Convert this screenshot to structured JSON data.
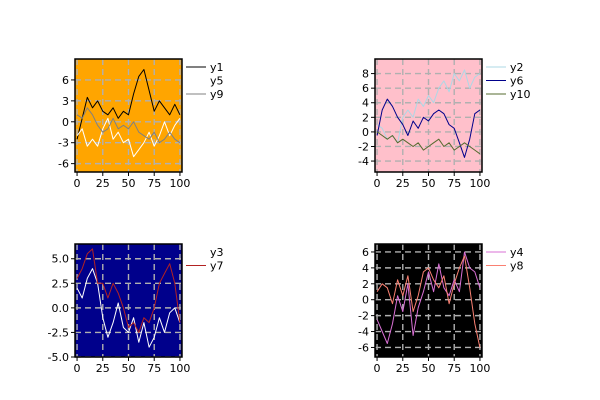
{
  "chart_data": [
    {
      "type": "line",
      "x": [
        0,
        5,
        10,
        15,
        20,
        25,
        30,
        35,
        40,
        45,
        50,
        55,
        60,
        65,
        70,
        75,
        80,
        85,
        90,
        95,
        100
      ],
      "xticks": [
        0,
        25,
        50,
        75,
        100
      ],
      "xtick_labels": [
        "0",
        "25",
        "50",
        "75",
        "100"
      ],
      "xlim": [
        -2,
        102
      ],
      "yticks": [
        -6,
        -3,
        0,
        3,
        6
      ],
      "ytick_labels": [
        "-6",
        "-3",
        "0",
        "3",
        "6"
      ],
      "ylim": [
        -7.2,
        9.0
      ],
      "background": "#ffa500",
      "grid": true,
      "legend_position": "right",
      "series": [
        {
          "name": "y1",
          "color": "#000000",
          "values": [
            -2.5,
            0.5,
            3.5,
            2.0,
            3.0,
            1.5,
            1.0,
            2.0,
            0.5,
            1.5,
            1.0,
            4.0,
            6.5,
            7.5,
            4.5,
            1.5,
            3.0,
            2.0,
            1.0,
            2.5,
            1.0
          ]
        },
        {
          "name": "y5",
          "color": "#ffffff",
          "values": [
            -2.0,
            -1.0,
            -3.5,
            -2.5,
            -3.5,
            -1.0,
            0.5,
            -2.5,
            -1.5,
            -3.0,
            -2.5,
            -5.0,
            -4.0,
            -3.0,
            -1.5,
            -3.5,
            -2.0,
            0.0,
            -2.0,
            -0.5,
            0.5
          ]
        },
        {
          "name": "y9",
          "color": "#808080",
          "values": [
            1.0,
            0.5,
            2.0,
            1.0,
            -0.5,
            -1.5,
            -1.0,
            0.5,
            -1.0,
            -0.5,
            -1.0,
            0.0,
            -1.5,
            -2.0,
            -2.5,
            -1.5,
            -3.0,
            -2.5,
            -1.5,
            -2.5,
            -3.0
          ]
        }
      ]
    },
    {
      "type": "line",
      "x": [
        0,
        5,
        10,
        15,
        20,
        25,
        30,
        35,
        40,
        45,
        50,
        55,
        60,
        65,
        70,
        75,
        80,
        85,
        90,
        95,
        100
      ],
      "xticks": [
        0,
        25,
        50,
        75,
        100
      ],
      "xtick_labels": [
        "0",
        "25",
        "50",
        "75",
        "100"
      ],
      "xlim": [
        -2,
        102
      ],
      "yticks": [
        -4,
        -2,
        0,
        2,
        4,
        6,
        8
      ],
      "ytick_labels": [
        "-4",
        "-2",
        "0",
        "2",
        "4",
        "6",
        "8"
      ],
      "ylim": [
        -5.5,
        10.0
      ],
      "background": "#ffc0cb",
      "grid": true,
      "legend_position": "right",
      "series": [
        {
          "name": "y2",
          "color": "#add8e6",
          "values": [
            1.0,
            0.5,
            -1.0,
            -0.5,
            -1.5,
            2.0,
            3.0,
            2.0,
            4.5,
            3.5,
            5.0,
            4.0,
            6.0,
            7.0,
            5.5,
            8.0,
            7.0,
            8.5,
            6.0,
            7.5,
            8.0
          ]
        },
        {
          "name": "y6",
          "color": "#00008b",
          "values": [
            -0.5,
            3.0,
            4.5,
            3.5,
            2.0,
            1.0,
            -0.5,
            1.5,
            0.5,
            2.0,
            1.5,
            2.5,
            3.0,
            2.5,
            1.0,
            0.5,
            -1.5,
            -3.5,
            -1.0,
            2.5,
            3.0
          ]
        },
        {
          "name": "y10",
          "color": "#556b2f",
          "values": [
            0.0,
            -0.5,
            -1.0,
            -0.5,
            -1.5,
            -1.0,
            -1.5,
            -2.0,
            -1.5,
            -2.5,
            -2.0,
            -1.5,
            -1.0,
            -2.0,
            -1.5,
            -2.5,
            -2.0,
            -1.5,
            -2.0,
            -2.5,
            -3.0
          ]
        }
      ]
    },
    {
      "type": "line",
      "x": [
        0,
        5,
        10,
        15,
        20,
        25,
        30,
        35,
        40,
        45,
        50,
        55,
        60,
        65,
        70,
        75,
        80,
        85,
        90,
        95,
        100
      ],
      "xticks": [
        0,
        25,
        50,
        75,
        100
      ],
      "xtick_labels": [
        "0",
        "25",
        "50",
        "75",
        "100"
      ],
      "xlim": [
        -2,
        102
      ],
      "yticks": [
        -5.0,
        -2.5,
        0.0,
        2.5,
        5.0
      ],
      "ytick_labels": [
        "-5.0",
        "-2.5",
        "0.0",
        "2.5",
        "5.0"
      ],
      "ylim": [
        -5.0,
        6.5
      ],
      "background": "#00008b",
      "grid": true,
      "legend_position": "right",
      "series": [
        {
          "name": "y3",
          "color": "#ffffff",
          "values": [
            2.0,
            1.0,
            3.0,
            4.0,
            2.5,
            -1.0,
            -3.0,
            -1.5,
            0.5,
            -2.0,
            -2.5,
            -1.0,
            -3.5,
            -1.5,
            -4.0,
            -3.0,
            -1.0,
            -2.5,
            -0.5,
            0.0,
            -1.5
          ]
        },
        {
          "name": "y7",
          "color": "#b22222",
          "values": [
            3.0,
            4.0,
            5.5,
            6.0,
            2.5,
            2.5,
            1.0,
            2.5,
            1.5,
            0.0,
            -2.0,
            -1.5,
            -2.5,
            -1.0,
            -1.5,
            0.0,
            2.5,
            3.5,
            4.5,
            2.5,
            -1.5
          ]
        }
      ]
    },
    {
      "type": "line",
      "x": [
        0,
        5,
        10,
        15,
        20,
        25,
        30,
        35,
        40,
        45,
        50,
        55,
        60,
        65,
        70,
        75,
        80,
        85,
        90,
        95,
        100
      ],
      "xticks": [
        0,
        25,
        50,
        75,
        100
      ],
      "xtick_labels": [
        "0",
        "25",
        "50",
        "75",
        "100"
      ],
      "xlim": [
        -2,
        102
      ],
      "yticks": [
        -6,
        -4,
        -2,
        0,
        2,
        4,
        6
      ],
      "ytick_labels": [
        "-6",
        "-4",
        "-2",
        "0",
        "2",
        "4",
        "6"
      ],
      "ylim": [
        -7.2,
        7.0
      ],
      "background": "#000000",
      "grid": true,
      "legend_position": "right",
      "series": [
        {
          "name": "y4",
          "color": "#da70d6",
          "values": [
            -2.5,
            -4.0,
            -5.5,
            -3.0,
            0.5,
            -1.5,
            2.0,
            -4.5,
            -1.0,
            1.0,
            3.5,
            1.0,
            4.5,
            1.5,
            0.5,
            2.5,
            1.0,
            6.0,
            4.0,
            3.5,
            1.5
          ]
        },
        {
          "name": "y8",
          "color": "#fa8072",
          "values": [
            1.0,
            2.0,
            1.5,
            -0.5,
            2.5,
            0.5,
            3.0,
            -1.5,
            0.5,
            3.5,
            4.0,
            2.5,
            1.5,
            3.0,
            -0.5,
            2.0,
            4.0,
            5.5,
            1.5,
            -3.0,
            -6.0
          ]
        }
      ]
    }
  ]
}
